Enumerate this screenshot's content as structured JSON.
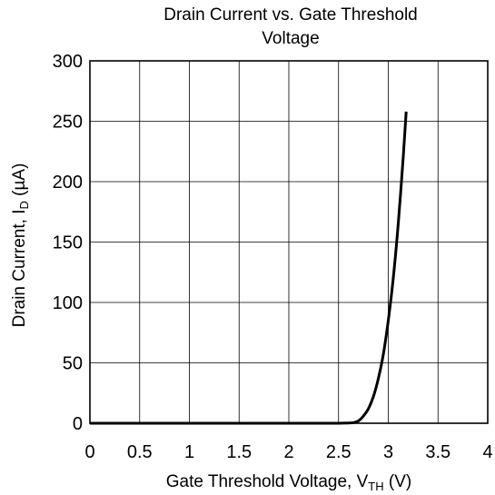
{
  "chart_data": {
    "type": "line",
    "title_line1": "Drain Current vs. Gate Threshold",
    "title_line2": "Voltage",
    "xlabel": {
      "main": "Gate Threshold Voltage, V",
      "sub": "TH",
      "unit": " (V)"
    },
    "ylabel": {
      "main": "Drain Current, I",
      "sub": "D",
      "unit": " (µA)"
    },
    "xlim": [
      0,
      4
    ],
    "ylim": [
      0,
      300
    ],
    "xticks": [
      0,
      0.5,
      1,
      1.5,
      2,
      2.5,
      3,
      3.5,
      4
    ],
    "xtick_labels": [
      "0",
      "0.5",
      "1",
      "1.5",
      "2",
      "2.5",
      "3",
      "3.5",
      "4"
    ],
    "yticks": [
      0,
      50,
      100,
      150,
      200,
      250,
      300
    ],
    "ytick_labels": [
      "0",
      "50",
      "100",
      "150",
      "200",
      "250",
      "300"
    ],
    "grid": true,
    "line_color": "#000000",
    "series": [
      {
        "x": [
          0,
          0.5,
          1,
          1.5,
          2,
          2.5,
          2.65,
          2.7,
          2.75,
          2.8,
          2.85,
          2.9,
          2.95,
          3.0,
          3.05,
          3.1,
          3.15,
          3.18
        ],
        "y": [
          0,
          0,
          0,
          0,
          0,
          0,
          0.5,
          2,
          6,
          12,
          22,
          37,
          57,
          85,
          120,
          165,
          220,
          258
        ]
      }
    ]
  }
}
